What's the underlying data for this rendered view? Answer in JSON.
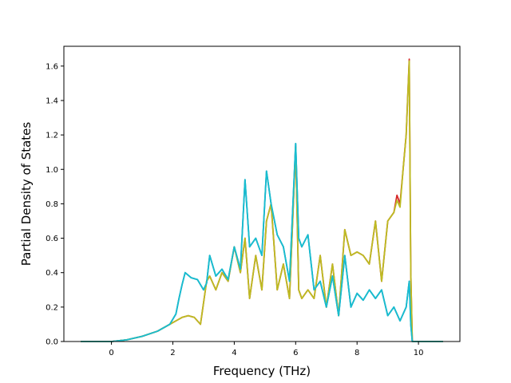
{
  "chart_data": {
    "type": "line",
    "title": "",
    "xlabel": "Frequency (THz)",
    "ylabel": "Partial Density of States",
    "xlim": [
      -1.55,
      11.35
    ],
    "ylim": [
      0,
      1.715
    ],
    "xticks": [
      0,
      2,
      4,
      6,
      8,
      10
    ],
    "yticks": [
      0.0,
      0.2,
      0.4,
      0.6,
      0.8,
      1.0,
      1.2,
      1.4,
      1.6
    ],
    "ytick_labels": [
      "0.0",
      "0.2",
      "0.4",
      "0.6",
      "0.8",
      "1.0",
      "1.2",
      "1.4",
      "1.6"
    ],
    "grid": false,
    "legend": "none",
    "series": [
      {
        "color": "#1f77b4",
        "x": [
          -1.0,
          0.0,
          0.5,
          1.0,
          1.5,
          1.9,
          2.1,
          2.2,
          2.3,
          2.4,
          2.6,
          2.8,
          3.0,
          3.1,
          3.2,
          3.4,
          3.6,
          3.8,
          4.0,
          4.2,
          4.35,
          4.5,
          4.7,
          4.9,
          5.05,
          5.2,
          5.4,
          5.6,
          5.8,
          6.0,
          6.1,
          6.2,
          6.4,
          6.6,
          6.8,
          7.0,
          7.2,
          7.4,
          7.6,
          7.8,
          8.0,
          8.2,
          8.4,
          8.6,
          8.8,
          9.0,
          9.2,
          9.4,
          9.6,
          9.7,
          9.75,
          9.8,
          10.8
        ],
        "y": [
          0.0,
          0.0,
          0.01,
          0.03,
          0.06,
          0.1,
          0.16,
          0.25,
          0.33,
          0.4,
          0.37,
          0.36,
          0.3,
          0.34,
          0.5,
          0.38,
          0.42,
          0.36,
          0.55,
          0.42,
          0.94,
          0.55,
          0.6,
          0.5,
          0.99,
          0.8,
          0.62,
          0.55,
          0.35,
          1.15,
          0.6,
          0.55,
          0.62,
          0.3,
          0.35,
          0.2,
          0.38,
          0.15,
          0.5,
          0.2,
          0.28,
          0.24,
          0.3,
          0.25,
          0.3,
          0.15,
          0.2,
          0.12,
          0.2,
          0.35,
          0.1,
          0.0,
          0.0
        ]
      },
      {
        "color": "#d62728",
        "x": [
          -1.0,
          0.0,
          0.5,
          1.0,
          1.5,
          1.9,
          2.1,
          2.3,
          2.5,
          2.7,
          2.9,
          3.1,
          3.2,
          3.4,
          3.6,
          3.8,
          4.0,
          4.2,
          4.35,
          4.5,
          4.7,
          4.9,
          5.05,
          5.2,
          5.4,
          5.6,
          5.8,
          6.0,
          6.1,
          6.2,
          6.4,
          6.6,
          6.8,
          7.0,
          7.2,
          7.4,
          7.6,
          7.8,
          8.0,
          8.2,
          8.4,
          8.6,
          8.8,
          9.0,
          9.2,
          9.3,
          9.4,
          9.5,
          9.6,
          9.7,
          9.75,
          9.8,
          10.8
        ],
        "y": [
          0.0,
          0.0,
          0.01,
          0.03,
          0.06,
          0.1,
          0.12,
          0.14,
          0.15,
          0.14,
          0.1,
          0.35,
          0.38,
          0.3,
          0.4,
          0.35,
          0.55,
          0.4,
          0.6,
          0.25,
          0.5,
          0.3,
          0.7,
          0.8,
          0.3,
          0.45,
          0.25,
          1.13,
          0.3,
          0.25,
          0.3,
          0.25,
          0.5,
          0.2,
          0.45,
          0.15,
          0.65,
          0.5,
          0.52,
          0.5,
          0.45,
          0.7,
          0.35,
          0.7,
          0.75,
          0.85,
          0.8,
          1.0,
          1.2,
          1.64,
          0.4,
          0.0,
          0.0
        ]
      },
      {
        "color": "#bcbd22",
        "x": [
          -1.0,
          0.0,
          0.5,
          1.0,
          1.5,
          1.9,
          2.1,
          2.3,
          2.5,
          2.7,
          2.9,
          3.1,
          3.2,
          3.4,
          3.6,
          3.8,
          4.0,
          4.2,
          4.35,
          4.5,
          4.7,
          4.9,
          5.05,
          5.2,
          5.4,
          5.6,
          5.8,
          6.0,
          6.1,
          6.2,
          6.4,
          6.6,
          6.8,
          7.0,
          7.2,
          7.4,
          7.6,
          7.8,
          8.0,
          8.2,
          8.4,
          8.6,
          8.8,
          9.0,
          9.2,
          9.3,
          9.4,
          9.5,
          9.6,
          9.7,
          9.75,
          9.8,
          10.8
        ],
        "y": [
          0.0,
          0.0,
          0.01,
          0.03,
          0.06,
          0.1,
          0.12,
          0.14,
          0.15,
          0.14,
          0.1,
          0.35,
          0.38,
          0.3,
          0.4,
          0.35,
          0.55,
          0.4,
          0.6,
          0.25,
          0.5,
          0.3,
          0.7,
          0.8,
          0.3,
          0.45,
          0.25,
          1.13,
          0.3,
          0.25,
          0.3,
          0.25,
          0.5,
          0.2,
          0.45,
          0.15,
          0.65,
          0.5,
          0.52,
          0.5,
          0.45,
          0.7,
          0.35,
          0.7,
          0.75,
          0.82,
          0.78,
          1.0,
          1.2,
          1.63,
          0.4,
          0.0,
          0.0
        ]
      },
      {
        "color": "#17becf",
        "x": [
          -1.0,
          0.0,
          0.5,
          1.0,
          1.5,
          1.9,
          2.1,
          2.2,
          2.3,
          2.4,
          2.6,
          2.8,
          3.0,
          3.1,
          3.2,
          3.4,
          3.6,
          3.8,
          4.0,
          4.2,
          4.35,
          4.5,
          4.7,
          4.9,
          5.05,
          5.2,
          5.4,
          5.6,
          5.8,
          6.0,
          6.1,
          6.2,
          6.4,
          6.6,
          6.8,
          7.0,
          7.2,
          7.4,
          7.6,
          7.8,
          8.0,
          8.2,
          8.4,
          8.6,
          8.8,
          9.0,
          9.2,
          9.4,
          9.6,
          9.7,
          9.75,
          9.8,
          10.8
        ],
        "y": [
          0.0,
          0.0,
          0.01,
          0.03,
          0.06,
          0.1,
          0.16,
          0.25,
          0.33,
          0.4,
          0.37,
          0.36,
          0.3,
          0.34,
          0.5,
          0.38,
          0.42,
          0.36,
          0.55,
          0.42,
          0.94,
          0.55,
          0.6,
          0.5,
          0.99,
          0.8,
          0.62,
          0.55,
          0.35,
          1.15,
          0.6,
          0.55,
          0.62,
          0.3,
          0.35,
          0.2,
          0.38,
          0.15,
          0.5,
          0.2,
          0.28,
          0.24,
          0.3,
          0.25,
          0.3,
          0.15,
          0.2,
          0.12,
          0.2,
          0.35,
          0.1,
          0.0,
          0.0
        ]
      }
    ]
  }
}
